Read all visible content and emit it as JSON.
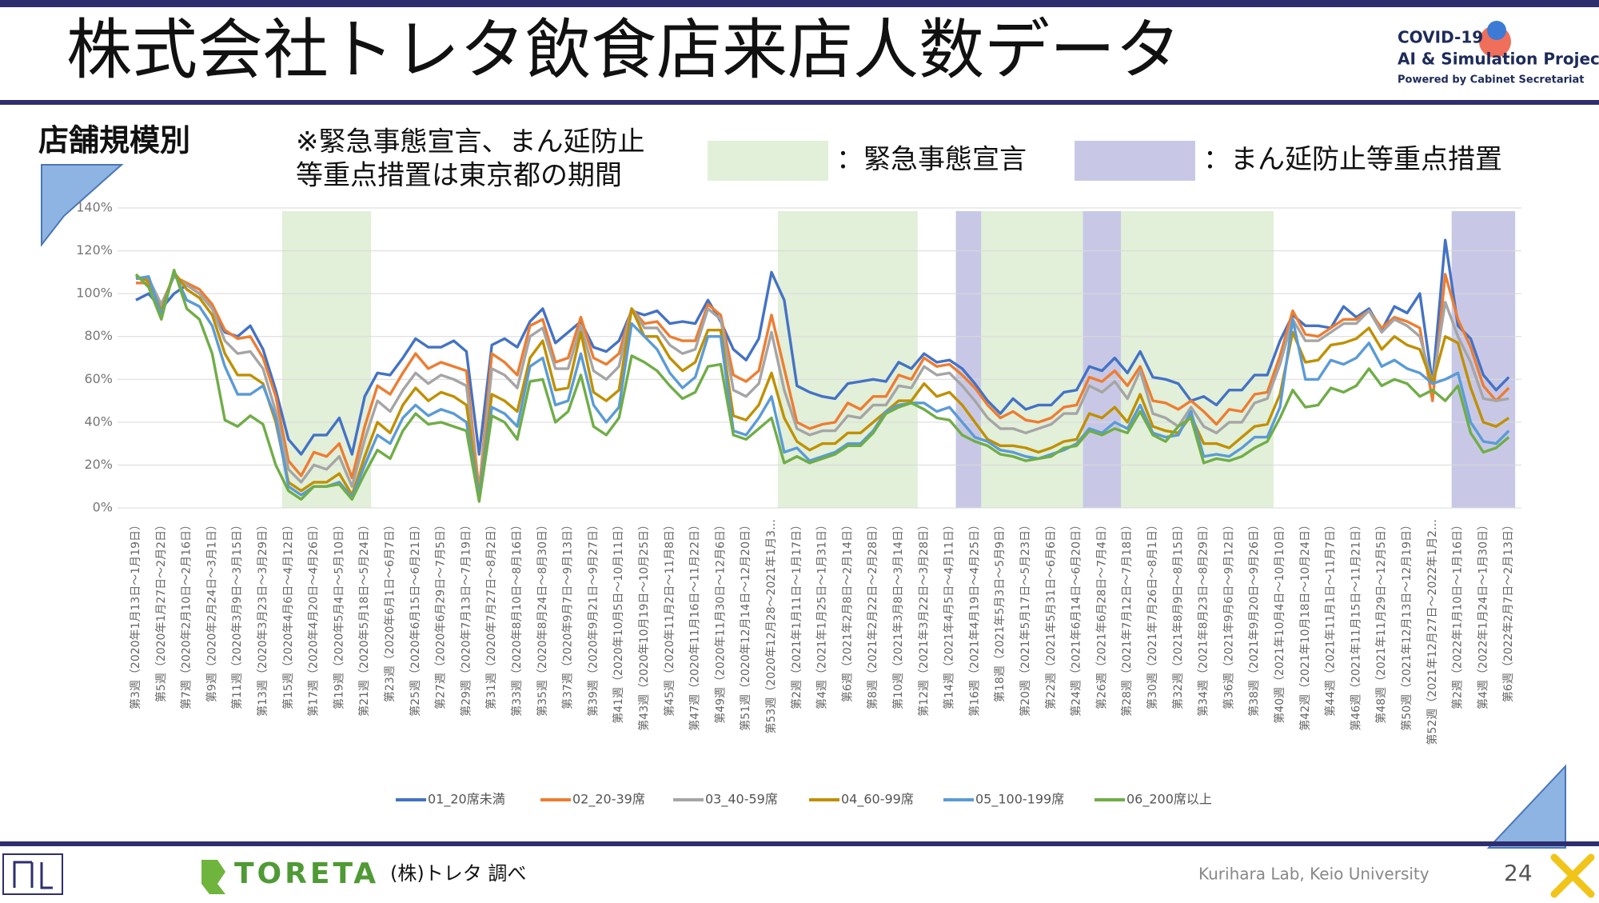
{
  "header": {
    "title": "株式会社トレタ飲食店来店人数データ",
    "logo": [
      "COVID-19",
      "AI & Simulation Project",
      "Powered by Cabinet Secretariat"
    ]
  },
  "section_label": "店舗規模別",
  "note": [
    "※緊急事態宣言、まん延防止",
    "等重点措置は東京都の期間"
  ],
  "chart_data": {
    "type": "line",
    "categories": [
      "第3週（2020年1月13日～1月19日）",
      null,
      "第5週（2020年1月27日～2月2日）",
      null,
      "第7週（2020年2月10日～2月16日）",
      null,
      "第9週（2020年2月24日～3月1日）",
      null,
      "第11週（2020年3月9日～3月15日）",
      null,
      "第13週（2020年3月23日～3月29日）",
      null,
      "第15週（2020年4月6日～4月12日）",
      null,
      "第17週（2020年4月20日～4月26日）",
      null,
      "第19週（2020年5月4日～5月10日）",
      null,
      "第21週（2020年5月18日～5月24日）",
      null,
      "第23週（2020年6月1日～6月7日）",
      null,
      "第25週（2020年6月15日～6月21日）",
      null,
      "第27週（2020年6月29日～7月5日）",
      null,
      "第29週（2020年7月13日～7月19日）",
      null,
      "第31週（2020年7月27日～8月2日）",
      null,
      "第33週（2020年8月10日～8月16日）",
      null,
      "第35週（2020年8月24日～8月30日）",
      null,
      "第37週（2020年9月7日～9月13日）",
      null,
      "第39週（2020年9月21日～9月27日）",
      null,
      "第41週（2020年10月5日～10月11日）",
      null,
      "第43週（2020年10月19日～10月25日）",
      null,
      "第45週（2020年11月2日～11月8日）",
      null,
      "第47週（2020年11月16日～11月22日）",
      null,
      "第49週（2020年11月30日～12月6日）",
      null,
      "第51週（2020年12月14日～12月20日）",
      null,
      "第53週（2020年12月28～2021年1月3…",
      null,
      "第2週（2021年1月11日～1月17日）",
      null,
      "第4週（2021年1月25日～1月31日）",
      null,
      "第6週（2021年2月8日～2月14日）",
      null,
      "第8週（2021年2月22日～2月28日）",
      null,
      "第10週（2021年3月8日～3月14日）",
      null,
      "第12週（2021年3月22日～3月28日）",
      null,
      "第14週（2021年4月5日～4月11日）",
      null,
      "第16週（2021年4月19日～4月25日）",
      null,
      "第18週（2021年5月3日～5月9日）",
      null,
      "第20週（2021年5月17日～5月23日）",
      null,
      "第22週（2021年5月31日～6月6日）",
      null,
      "第24週（2021年6月14日～6月20日）",
      null,
      "第26週（2021年6月28日～7月4日）",
      null,
      "第28週（2021年7月12日～7月18日）",
      null,
      "第30週（2021年7月26日～8月1日）",
      null,
      "第32週（2021年8月9日～8月15日）",
      null,
      "第34週（2021年8月23日～8月29日）",
      null,
      "第36週（2021年9月6日～9月12日）",
      null,
      "第38週（2021年9月20日～9月26日）",
      null,
      "第40週（2021年10月4日～10月10日）",
      null,
      "第42週（2021年10月18日～10月24日）",
      null,
      "第44週（2021年11月1日～11月7日）",
      null,
      "第46週（2021年11月15日～11月21日）",
      null,
      "第48週（2021年11月29日～12月5日）",
      null,
      "第50週（2021年12月13日～12月19日）",
      null,
      "第52週（2021年12月27日～2022年1月2…",
      null,
      "第2週（2022年1月10日～1月16日）",
      null,
      "第4週（2022年1月24日～1月30日）",
      null,
      "第6週（2022年2月7日～2月13日）"
    ],
    "series": [
      {
        "name": "01_20席未満",
        "color": "#4472c4",
        "values": [
          97,
          100,
          93,
          100,
          104,
          100,
          93,
          82,
          80,
          85,
          74,
          55,
          32,
          25,
          34,
          34,
          42,
          25,
          52,
          63,
          62,
          70,
          79,
          75,
          75,
          78,
          73,
          25,
          76,
          79,
          75,
          87,
          93,
          77,
          82,
          87,
          75,
          73,
          78,
          92,
          90,
          92,
          86,
          87,
          86,
          97,
          87,
          74,
          69,
          79,
          110,
          97,
          57,
          54,
          52,
          51,
          58,
          59,
          60,
          59,
          68,
          65,
          72,
          68,
          69,
          65,
          58,
          50,
          44,
          51,
          46,
          48,
          48,
          54,
          55,
          66,
          64,
          70,
          63,
          73,
          61,
          60,
          58,
          50,
          52,
          48,
          55,
          55,
          62,
          62,
          78,
          90,
          85,
          85,
          84,
          94,
          89,
          93,
          83,
          94,
          91,
          100,
          58,
          125,
          85,
          79,
          62,
          55,
          61
        ]
      },
      {
        "name": "02_20-39席",
        "color": "#ed7d31",
        "values": [
          105,
          105,
          95,
          108,
          105,
          102,
          95,
          83,
          79,
          80,
          70,
          52,
          22,
          15,
          26,
          24,
          30,
          14,
          38,
          57,
          53,
          63,
          72,
          65,
          68,
          66,
          64,
          8,
          72,
          68,
          62,
          85,
          88,
          68,
          70,
          89,
          70,
          67,
          72,
          93,
          86,
          87,
          80,
          78,
          78,
          95,
          90,
          62,
          59,
          64,
          90,
          65,
          40,
          37,
          39,
          40,
          49,
          46,
          52,
          52,
          62,
          60,
          70,
          66,
          67,
          62,
          56,
          48,
          42,
          45,
          41,
          40,
          42,
          47,
          48,
          61,
          59,
          64,
          57,
          66,
          50,
          49,
          46,
          50,
          45,
          39,
          46,
          45,
          53,
          54,
          71,
          92,
          81,
          80,
          84,
          88,
          88,
          92,
          84,
          89,
          87,
          84,
          50,
          109,
          88,
          75,
          57,
          50,
          56
        ]
      },
      {
        "name": "03_40-59席",
        "color": "#a5a5a5",
        "values": [
          107,
          107,
          95,
          108,
          104,
          100,
          93,
          78,
          72,
          73,
          65,
          45,
          18,
          12,
          20,
          18,
          24,
          10,
          32,
          50,
          45,
          55,
          63,
          58,
          62,
          60,
          57,
          7,
          65,
          62,
          56,
          80,
          84,
          65,
          65,
          85,
          64,
          60,
          66,
          93,
          84,
          84,
          76,
          72,
          74,
          93,
          88,
          55,
          52,
          58,
          82,
          55,
          37,
          34,
          36,
          36,
          43,
          42,
          48,
          48,
          57,
          56,
          66,
          62,
          63,
          57,
          50,
          42,
          37,
          37,
          35,
          37,
          39,
          44,
          44,
          57,
          54,
          59,
          51,
          64,
          44,
          42,
          38,
          47,
          38,
          35,
          40,
          40,
          49,
          51,
          67,
          88,
          78,
          78,
          82,
          86,
          86,
          92,
          82,
          88,
          85,
          80,
          58,
          96,
          80,
          68,
          51,
          50,
          51
        ]
      },
      {
        "name": "04_60-99席",
        "color": "#bf9000",
        "values": [
          108,
          106,
          92,
          110,
          102,
          98,
          90,
          72,
          62,
          62,
          58,
          40,
          12,
          8,
          12,
          12,
          16,
          6,
          24,
          40,
          35,
          48,
          56,
          50,
          54,
          52,
          48,
          6,
          53,
          50,
          45,
          70,
          78,
          55,
          56,
          82,
          54,
          50,
          55,
          93,
          80,
          80,
          70,
          64,
          68,
          83,
          83,
          43,
          41,
          48,
          63,
          42,
          31,
          27,
          30,
          30,
          35,
          35,
          40,
          45,
          50,
          50,
          58,
          52,
          54,
          48,
          40,
          32,
          29,
          29,
          28,
          26,
          28,
          31,
          32,
          44,
          42,
          47,
          40,
          53,
          38,
          36,
          35,
          43,
          30,
          30,
          28,
          33,
          38,
          39,
          53,
          82,
          68,
          69,
          76,
          77,
          79,
          84,
          74,
          80,
          76,
          74,
          58,
          80,
          77,
          56,
          40,
          38,
          42
        ]
      },
      {
        "name": "05_100-199席",
        "color": "#5b9bd5",
        "values": [
          107,
          108,
          90,
          110,
          97,
          94,
          85,
          66,
          53,
          53,
          57,
          42,
          10,
          6,
          10,
          10,
          12,
          5,
          20,
          34,
          30,
          42,
          48,
          43,
          46,
          44,
          40,
          5,
          47,
          44,
          38,
          66,
          70,
          48,
          50,
          72,
          48,
          40,
          47,
          86,
          80,
          74,
          63,
          56,
          61,
          80,
          80,
          36,
          34,
          42,
          52,
          26,
          28,
          22,
          24,
          26,
          30,
          30,
          36,
          45,
          48,
          49,
          49,
          45,
          47,
          40,
          33,
          31,
          27,
          26,
          24,
          23,
          25,
          27,
          30,
          37,
          35,
          40,
          37,
          48,
          35,
          33,
          34,
          45,
          24,
          25,
          24,
          28,
          33,
          33,
          47,
          88,
          60,
          60,
          69,
          67,
          70,
          77,
          66,
          69,
          65,
          63,
          58,
          60,
          63,
          40,
          31,
          30,
          36
        ]
      },
      {
        "name": "06_200席以上",
        "color": "#70ad47",
        "values": [
          109,
          103,
          88,
          111,
          93,
          88,
          72,
          41,
          38,
          43,
          39,
          20,
          8,
          4,
          10,
          10,
          11,
          4,
          16,
          27,
          23,
          36,
          44,
          39,
          40,
          38,
          36,
          3,
          43,
          40,
          32,
          59,
          60,
          40,
          45,
          62,
          38,
          34,
          42,
          71,
          68,
          64,
          57,
          51,
          54,
          66,
          67,
          34,
          32,
          37,
          42,
          21,
          24,
          21,
          23,
          25,
          29,
          29,
          35,
          44,
          47,
          49,
          46,
          42,
          41,
          34,
          31,
          29,
          25,
          24,
          22,
          23,
          24,
          28,
          29,
          36,
          34,
          37,
          35,
          45,
          34,
          31,
          38,
          42,
          21,
          23,
          22,
          24,
          28,
          31,
          42,
          55,
          47,
          48,
          56,
          54,
          57,
          65,
          57,
          60,
          58,
          52,
          55,
          50,
          57,
          35,
          26,
          28,
          33
        ]
      }
    ],
    "ylim": [
      0,
      140
    ],
    "yticks": [
      {
        "value": 0,
        "label": "0%"
      },
      {
        "value": 20,
        "label": "20%"
      },
      {
        "value": 40,
        "label": "40%"
      },
      {
        "value": 60,
        "label": "60%"
      },
      {
        "value": 80,
        "label": "80%"
      },
      {
        "value": 100,
        "label": "100%"
      },
      {
        "value": 120,
        "label": "120%"
      },
      {
        "value": 140,
        "label": "140%"
      }
    ],
    "grid": true,
    "legend": "bottom",
    "band_legend": [
      {
        "label": "：緊急事態宣言",
        "color": "#e2efd9"
      },
      {
        "label": "：まん延防止等重点措置",
        "color": "#c8c8e6"
      }
    ],
    "periods": [
      {
        "kind": 0,
        "start": 12,
        "end": 18
      },
      {
        "kind": 0,
        "start": 51,
        "end": 61
      },
      {
        "kind": 1,
        "start": 65,
        "end": 66
      },
      {
        "kind": 0,
        "start": 67,
        "end": 74
      },
      {
        "kind": 1,
        "start": 75,
        "end": 77
      },
      {
        "kind": 0,
        "start": 78,
        "end": 89
      },
      {
        "kind": 1,
        "start": 104,
        "end": 108
      }
    ]
  },
  "footer": {
    "brand": "TORETA",
    "source": "(株)トレタ 調べ",
    "lab": "Kurihara Lab, Keio University",
    "page": "24"
  }
}
